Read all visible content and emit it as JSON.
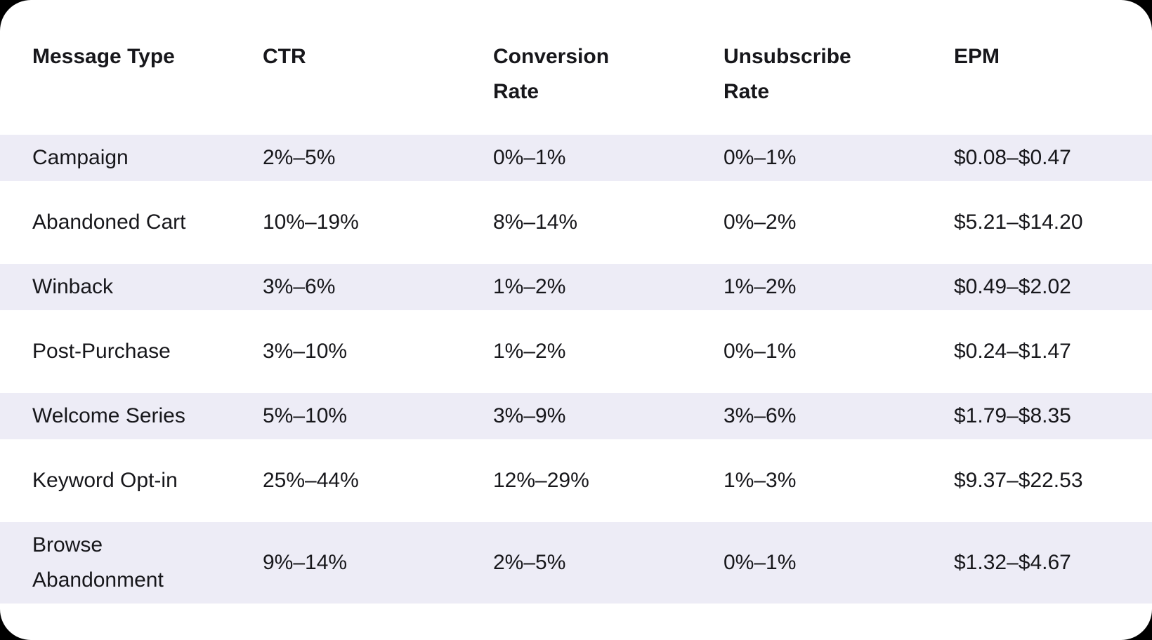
{
  "colors": {
    "page_bg": "#000000",
    "card_bg": "#FFFFFF",
    "row_stripe": "#EDECF6",
    "text": "#17171B"
  },
  "chart_data": {
    "type": "table",
    "columns": [
      "Message Type",
      "CTR",
      "Conversion Rate",
      "Unsubscribe Rate",
      "EPM"
    ],
    "rows": [
      [
        "Campaign",
        "2%–5%",
        "0%–1%",
        "0%–1%",
        "$0.08–$0.47"
      ],
      [
        "Abandoned Cart",
        "10%–19%",
        "8%–14%",
        "0%–2%",
        "$5.21–$14.20"
      ],
      [
        "Winback",
        "3%–6%",
        "1%–2%",
        "1%–2%",
        "$0.49–$2.02"
      ],
      [
        "Post-Purchase",
        "3%–10%",
        "1%–2%",
        "0%–1%",
        "$0.24–$1.47"
      ],
      [
        "Welcome Series",
        "5%–10%",
        "3%–9%",
        "3%–6%",
        "$1.79–$8.35"
      ],
      [
        "Keyword Opt-in",
        "25%–44%",
        "12%–29%",
        "1%–3%",
        "$9.37–$22.53"
      ],
      [
        "Browse Abandonment",
        "9%–14%",
        "2%–5%",
        "0%–1%",
        "$1.32–$4.67"
      ]
    ],
    "layout": {
      "striped_rows": "odd",
      "stripe_color": "#EDECF6",
      "header_position": "top",
      "grid": "off",
      "card_corner_radius_px": 44
    }
  }
}
